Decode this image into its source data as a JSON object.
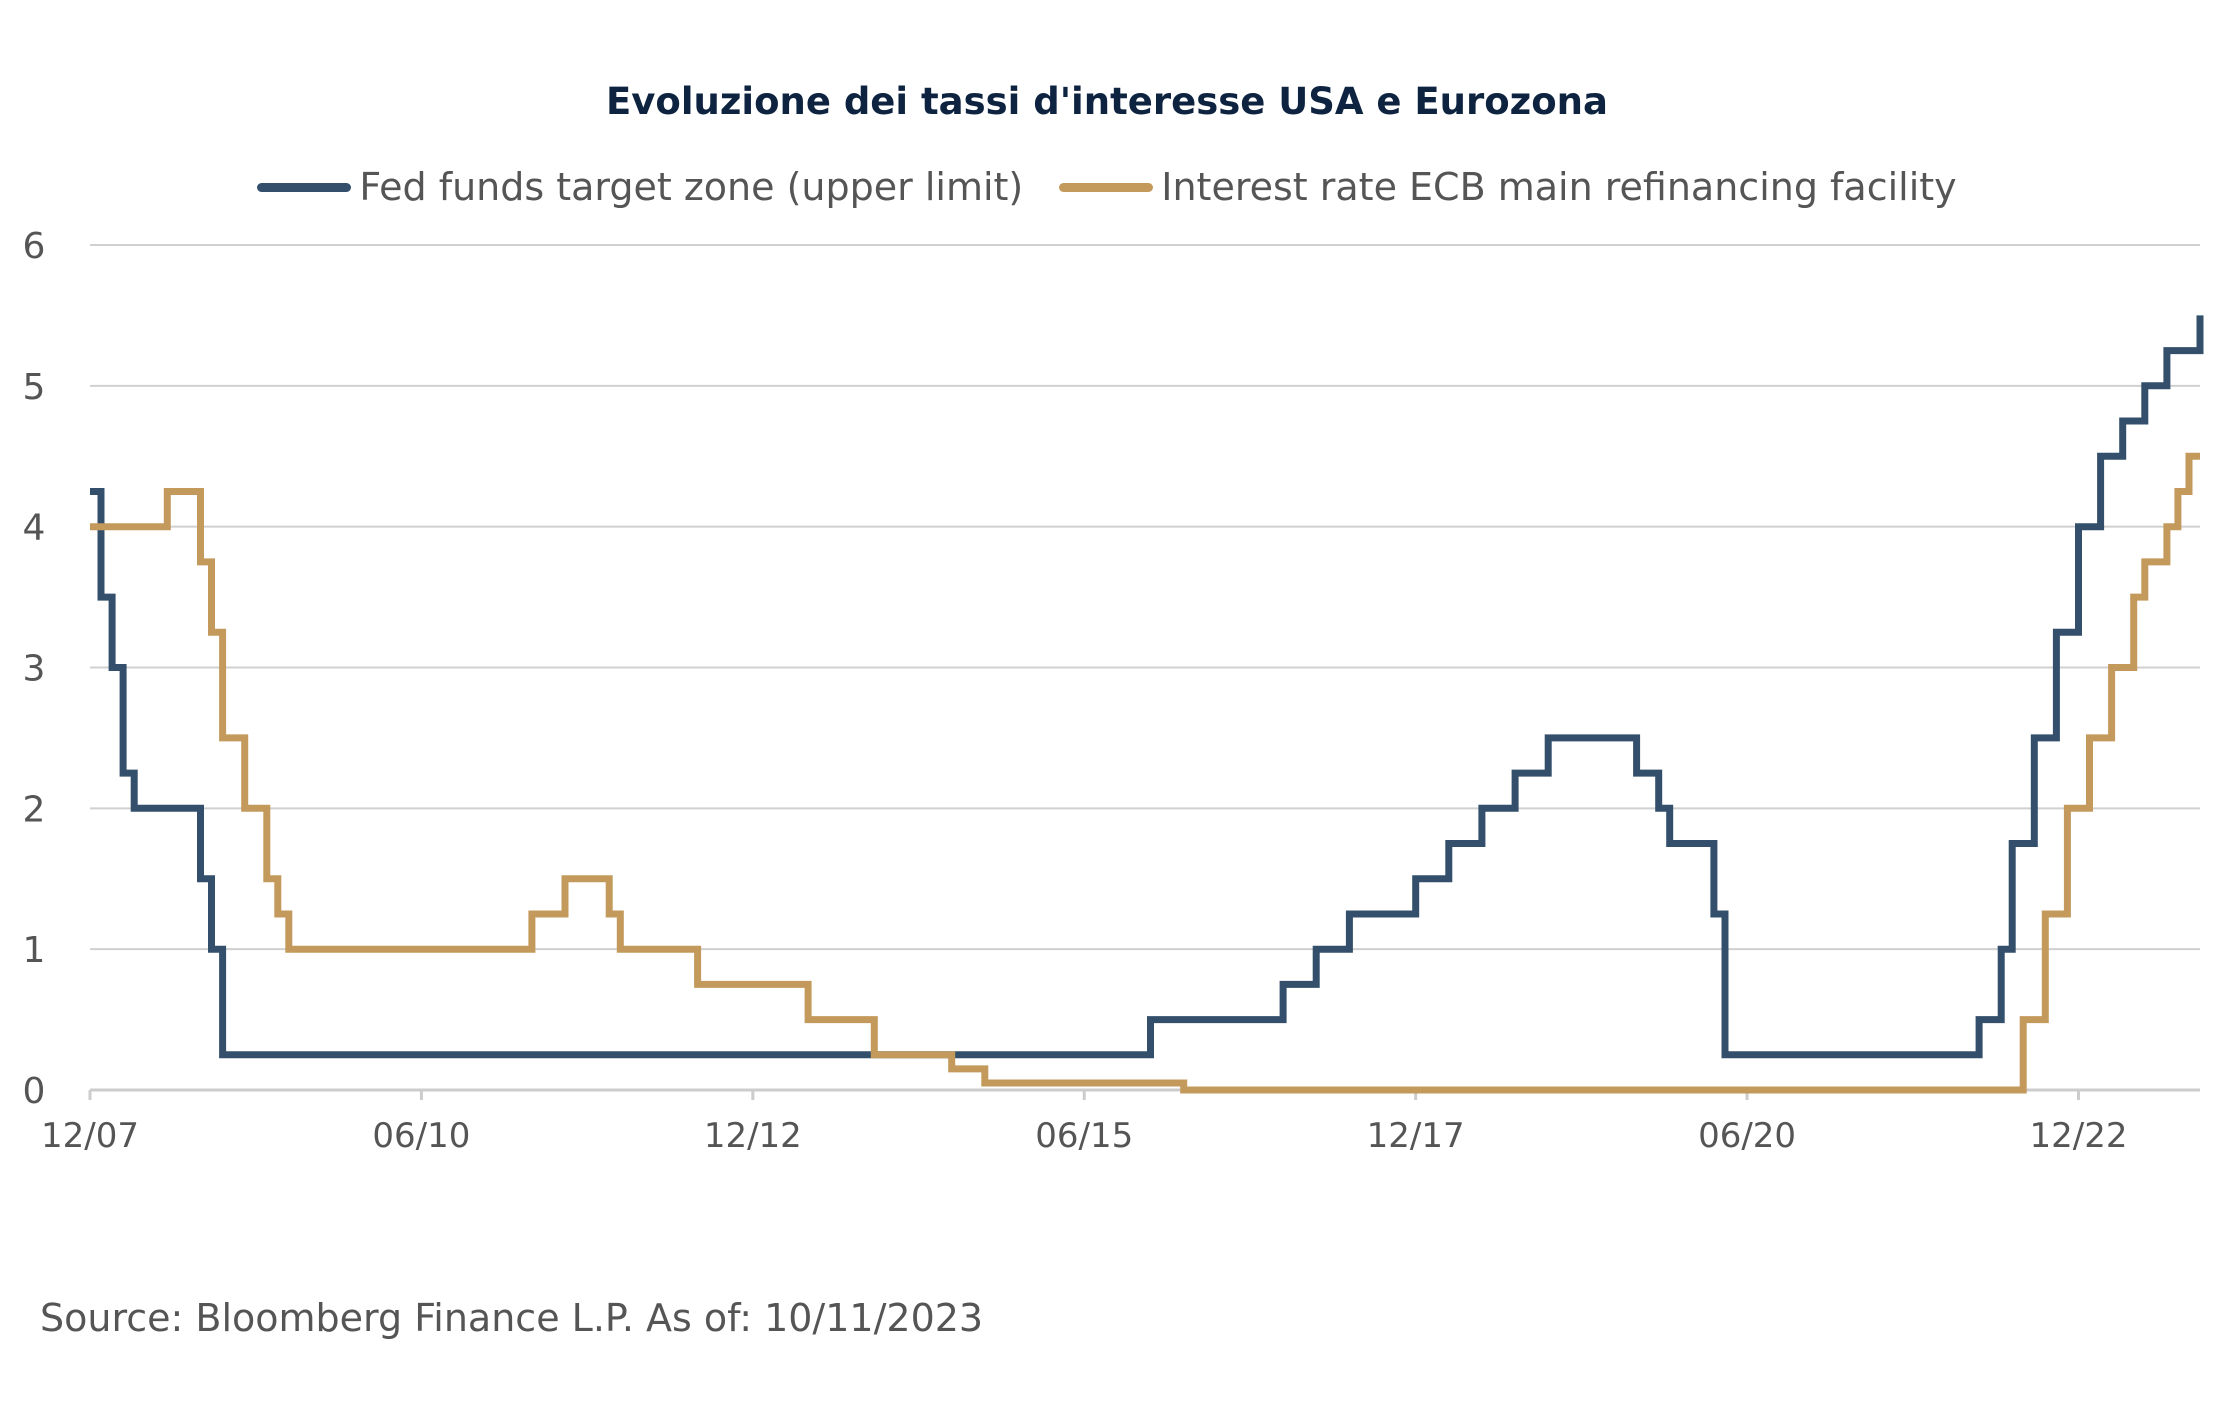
{
  "chart_data": {
    "type": "line",
    "step": true,
    "title": "Evoluzione dei tassi d'interesse USA e Eurozona",
    "xlabel": "",
    "ylabel": "",
    "x_ticks": [
      "12/07",
      "06/10",
      "12/12",
      "06/15",
      "12/17",
      "06/20",
      "12/22"
    ],
    "x_range": [
      "2007-12",
      "2023-11"
    ],
    "ylim": [
      0,
      6
    ],
    "y_ticks": [
      "0",
      "1",
      "2",
      "3",
      "4",
      "5",
      "6"
    ],
    "grid": "horizontal",
    "legend_position": "top-center",
    "series": [
      {
        "name": "Fed funds target zone (upper limit)",
        "color": "#344f6b",
        "points": [
          [
            "2007-12",
            4.25
          ],
          [
            "2008-01",
            3.5
          ],
          [
            "2008-02",
            3.0
          ],
          [
            "2008-03",
            2.25
          ],
          [
            "2008-04",
            2.0
          ],
          [
            "2008-10",
            1.5
          ],
          [
            "2008-11",
            1.0
          ],
          [
            "2008-12",
            0.25
          ],
          [
            "2015-12",
            0.5
          ],
          [
            "2016-12",
            0.75
          ],
          [
            "2017-03",
            1.0
          ],
          [
            "2017-06",
            1.25
          ],
          [
            "2017-12",
            1.5
          ],
          [
            "2018-03",
            1.75
          ],
          [
            "2018-06",
            2.0
          ],
          [
            "2018-09",
            2.25
          ],
          [
            "2018-12",
            2.5
          ],
          [
            "2019-08",
            2.25
          ],
          [
            "2019-10",
            2.0
          ],
          [
            "2019-11",
            1.75
          ],
          [
            "2020-03",
            1.25
          ],
          [
            "2020-04",
            0.25
          ],
          [
            "2022-03",
            0.5
          ],
          [
            "2022-05",
            1.0
          ],
          [
            "2022-06",
            1.75
          ],
          [
            "2022-08",
            2.5
          ],
          [
            "2022-10",
            3.25
          ],
          [
            "2022-12",
            4.0
          ],
          [
            "2023-02",
            4.5
          ],
          [
            "2023-04",
            4.75
          ],
          [
            "2023-06",
            5.0
          ],
          [
            "2023-08",
            5.25
          ],
          [
            "2023-11",
            5.5
          ]
        ]
      },
      {
        "name": "Interest rate ECB main refinancing facility",
        "color": "#c49a5c",
        "points": [
          [
            "2007-12",
            4.0
          ],
          [
            "2008-07",
            4.25
          ],
          [
            "2008-10",
            3.75
          ],
          [
            "2008-11",
            3.25
          ],
          [
            "2008-12",
            2.5
          ],
          [
            "2009-02",
            2.0
          ],
          [
            "2009-04",
            1.5
          ],
          [
            "2009-05",
            1.25
          ],
          [
            "2009-06",
            1.0
          ],
          [
            "2011-04",
            1.25
          ],
          [
            "2011-07",
            1.5
          ],
          [
            "2011-11",
            1.25
          ],
          [
            "2011-12",
            1.0
          ],
          [
            "2012-07",
            0.75
          ],
          [
            "2013-05",
            0.5
          ],
          [
            "2013-11",
            0.25
          ],
          [
            "2014-06",
            0.15
          ],
          [
            "2014-09",
            0.05
          ],
          [
            "2016-03",
            0.0
          ],
          [
            "2022-07",
            0.5
          ],
          [
            "2022-09",
            1.25
          ],
          [
            "2022-11",
            2.0
          ],
          [
            "2023-01",
            2.5
          ],
          [
            "2023-03",
            3.0
          ],
          [
            "2023-05",
            3.5
          ],
          [
            "2023-06",
            3.75
          ],
          [
            "2023-08",
            4.0
          ],
          [
            "2023-09",
            4.25
          ],
          [
            "2023-10",
            4.5
          ],
          [
            "2023-11",
            4.5
          ]
        ]
      }
    ]
  },
  "source_note": "Source: Bloomberg Finance L.P. As of: 10/11/2023"
}
